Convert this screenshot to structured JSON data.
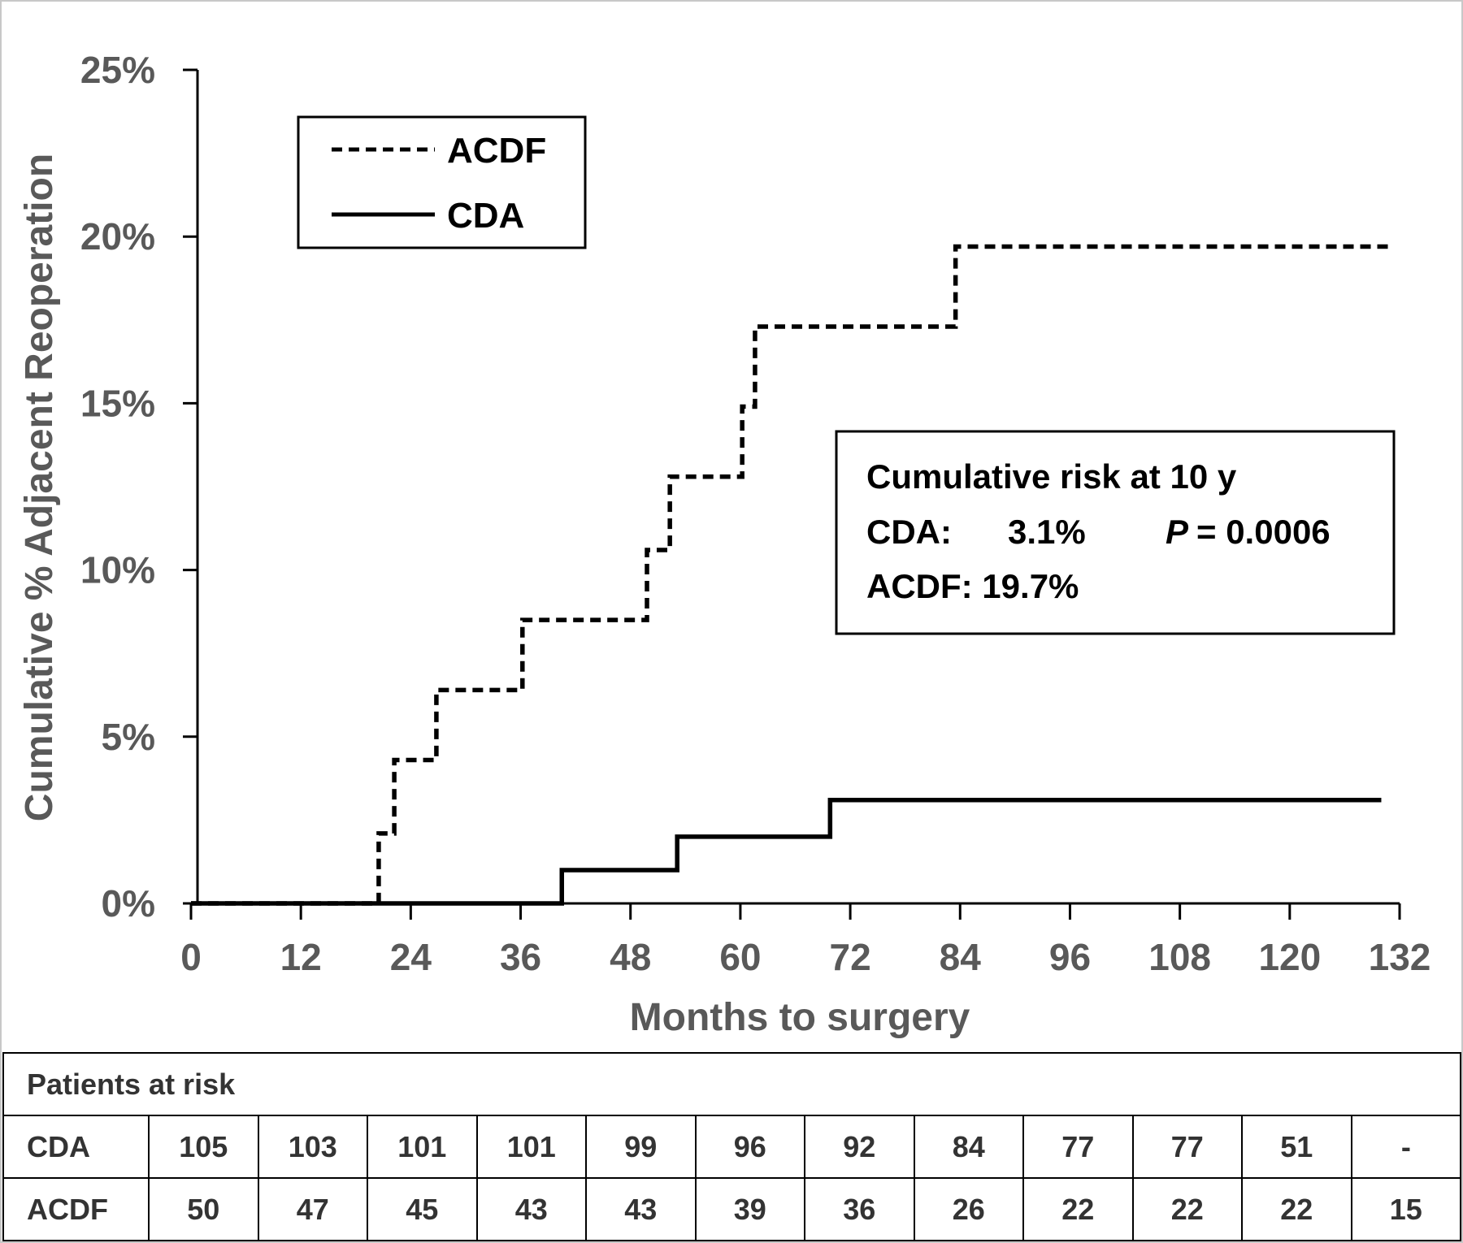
{
  "chart_data": {
    "type": "line",
    "step": true,
    "xlabel": "Months to surgery",
    "ylabel": "Cumulative % Adjacent Reoperation",
    "xlim": [
      0,
      132
    ],
    "ylim": [
      0,
      25
    ],
    "x_ticks": [
      0,
      12,
      24,
      36,
      48,
      60,
      72,
      84,
      96,
      108,
      120,
      132
    ],
    "x_tick_labels": [
      "0",
      "12",
      "24",
      "36",
      "48",
      "60",
      "72",
      "84",
      "96",
      "108",
      "120",
      "132"
    ],
    "y_ticks": [
      0,
      5,
      10,
      15,
      20,
      25
    ],
    "y_tick_labels": [
      "0%",
      "5%",
      "10%",
      "15%",
      "20%",
      "25%"
    ],
    "grid": false,
    "legend_position": "top-left",
    "series": [
      {
        "name": "ACDF",
        "style": "dashed",
        "color": "#000000",
        "x": [
          0,
          20.5,
          22.2,
          26.8,
          36.2,
          49.8,
          52.3,
          60.2,
          61.6,
          83.5,
          131
        ],
        "y": [
          0,
          2.1,
          4.3,
          6.4,
          8.5,
          10.6,
          12.8,
          14.9,
          17.3,
          19.7,
          19.7
        ]
      },
      {
        "name": "CDA",
        "style": "solid",
        "color": "#000000",
        "x": [
          0,
          40.5,
          53.1,
          69.8,
          130
        ],
        "y": [
          0,
          1.0,
          2.0,
          3.1,
          3.1
        ]
      }
    ],
    "annotation": {
      "line1": "Cumulative risk at 10 y",
      "line2_label": "CDA:",
      "line2_value": "3.1%",
      "p_label": "P",
      "p_value": "= 0.0006",
      "line3": "ACDF: 19.7%"
    }
  },
  "risk_table": {
    "title": "Patients at risk",
    "rows": [
      {
        "label": "CDA",
        "values": [
          "105",
          "103",
          "101",
          "101",
          "99",
          "96",
          "92",
          "84",
          "77",
          "77",
          "51",
          "-"
        ]
      },
      {
        "label": "ACDF",
        "values": [
          "50",
          "47",
          "45",
          "43",
          "43",
          "39",
          "36",
          "26",
          "22",
          "22",
          "22",
          "15"
        ]
      }
    ]
  }
}
